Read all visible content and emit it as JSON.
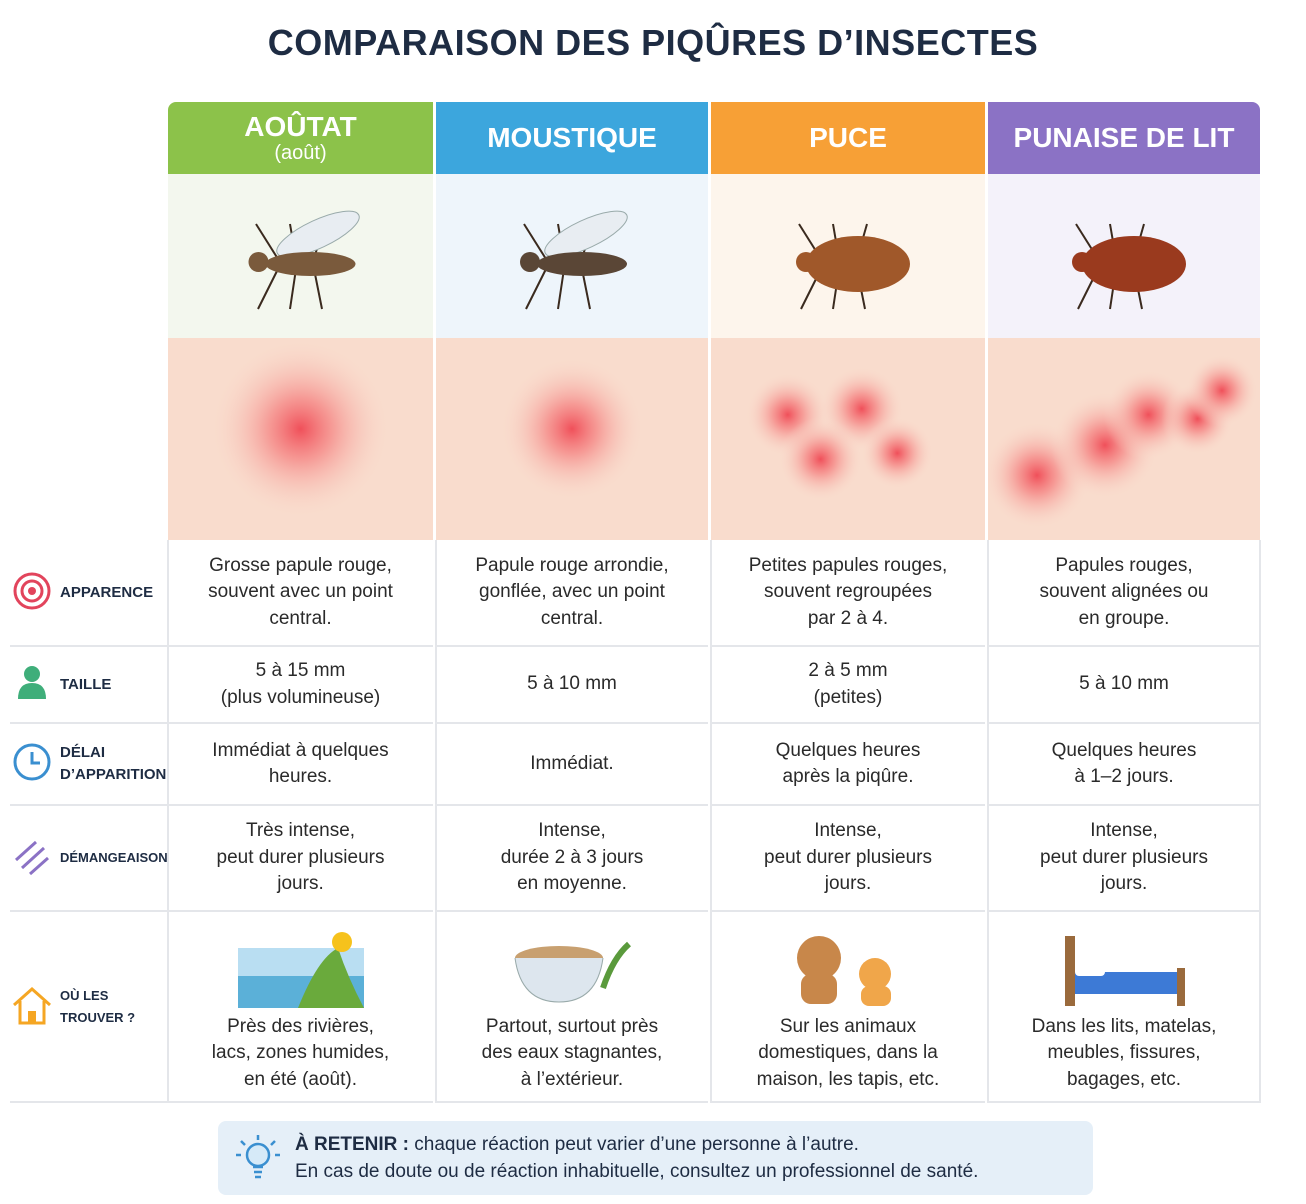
{
  "title": "COMPARAISON DES PIQÛRES D’INSECTES",
  "columns": [
    {
      "name": "AOÛTAT",
      "sub": "(août)"
    },
    {
      "name": "MOUSTIQUE"
    },
    {
      "name": "PUCE"
    },
    {
      "name": "PUNAISE DE LIT"
    }
  ],
  "rows": [
    {
      "label": [
        "APPARENCE"
      ],
      "cells": [
        [
          "Grosse papule rouge,",
          "souvent avec un point",
          "central."
        ],
        [
          "Papule rouge arrondie,",
          "gonflée, avec un point",
          "central."
        ],
        [
          "Petites papules rouges,",
          "souvent regroupées",
          "par 2 à 4."
        ],
        [
          "Papules rouges,",
          "souvent alignées ou",
          "en groupe."
        ]
      ]
    },
    {
      "label": [
        "TAILLE"
      ],
      "cells": [
        [
          "5 à 15 mm",
          "(plus volumineuse)"
        ],
        [
          "5 à 10 mm"
        ],
        [
          "2 à 5 mm",
          "(petites)"
        ],
        [
          "5 à 10 mm"
        ]
      ]
    },
    {
      "label": [
        "DÉLAI",
        "D’APPARITION"
      ],
      "cells": [
        [
          "Immédiat à quelques",
          "heures."
        ],
        [
          "Immédiat."
        ],
        [
          "Quelques heures",
          "après la piqûre."
        ],
        [
          "Quelques heures",
          "à 1–2 jours."
        ]
      ]
    },
    {
      "label": [
        "DÉMANGEAISON"
      ],
      "cells": [
        [
          "Très intense,",
          "peut durer plusieurs",
          "jours."
        ],
        [
          "Intense,",
          "durée 2 à 3 jours",
          "en moyenne."
        ],
        [
          "Intense,",
          "peut durer plusieurs",
          "jours."
        ],
        [
          "Intense,",
          "peut durer plusieurs",
          "jours."
        ]
      ]
    },
    {
      "label": [
        "OÙ LES TROUVER ?"
      ],
      "cells": [
        [
          "Près des rivières,",
          "lacs, zones humides,",
          "en été (août)."
        ],
        [
          "Partout, surtout près",
          "des eaux stagnantes,",
          "à l’extérieur."
        ],
        [
          "Sur les animaux",
          "domestiques, dans la",
          "maison, les tapis, etc."
        ],
        [
          "Dans les lits, matelas,",
          "meubles, fissures,",
          "bagages, etc."
        ]
      ]
    }
  ],
  "note": {
    "label": "À RETENIR :",
    "text": "chaque réaction peut varier d’une personne à l’autre.",
    "line2": "En cas de doute ou de réaction inhabituelle, consultez un professionnel de santé."
  }
}
